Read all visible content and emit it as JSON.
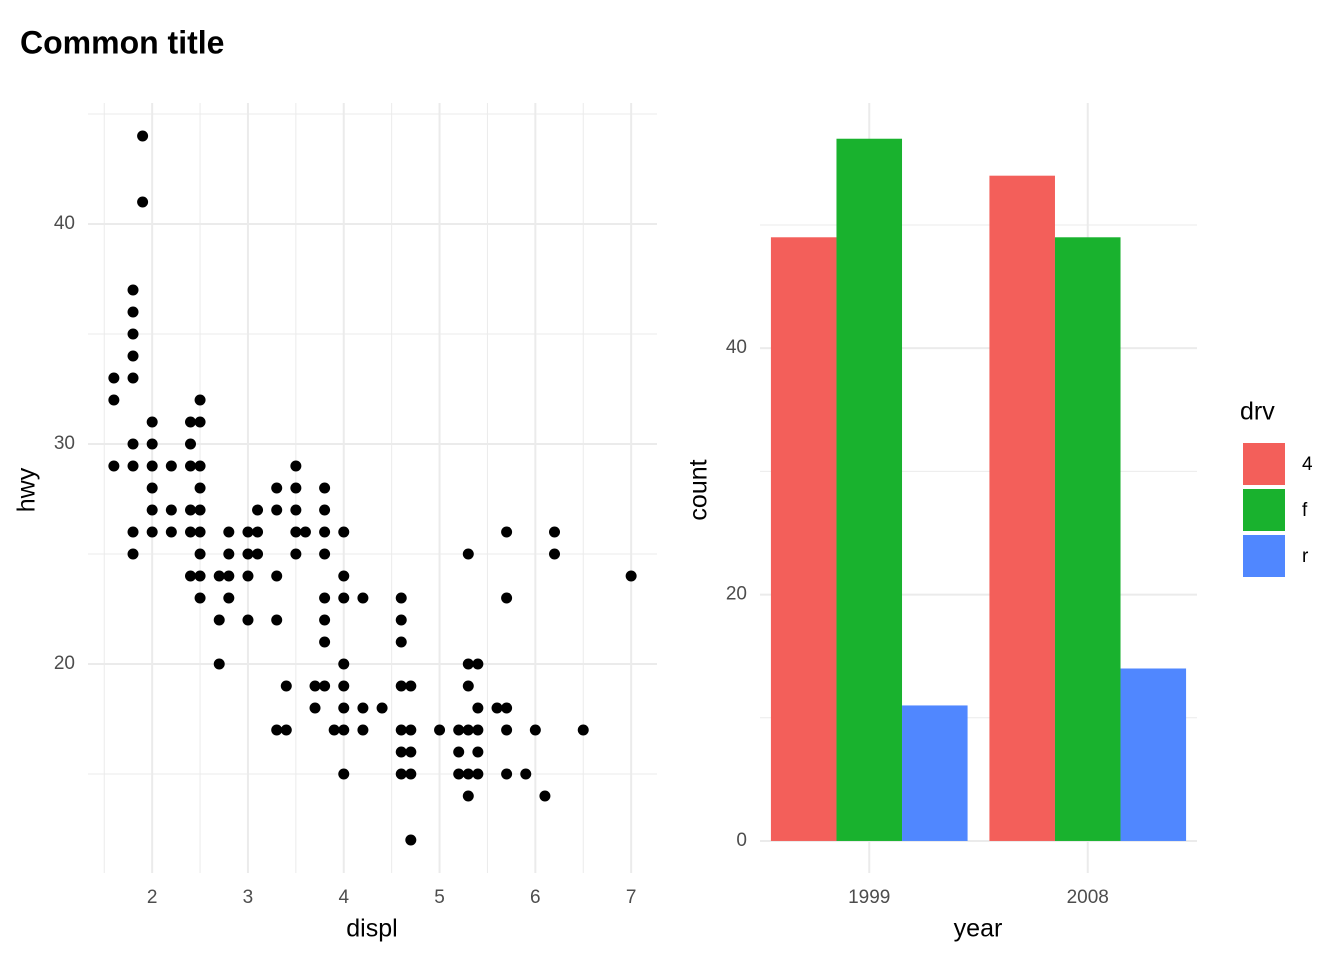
{
  "title": "Common title",
  "chart_data": [
    {
      "type": "scatter",
      "x_label": "displ",
      "y_label": "hwy",
      "color": "#000000",
      "xlim": [
        1.33,
        7.27
      ],
      "ylim": [
        10.5,
        45.5
      ],
      "xticks": [
        2,
        3,
        4,
        5,
        6,
        7
      ],
      "yticks": [
        20,
        30,
        40
      ],
      "x_minor_grid": [
        1.5,
        2.5,
        3.5,
        4.5,
        5.5,
        6.5
      ],
      "y_minor_grid": [
        15,
        25,
        35,
        45
      ],
      "grid": true,
      "x": [
        1.6,
        1.6,
        1.6,
        1.8,
        1.8,
        1.8,
        1.8,
        1.8,
        1.8,
        1.8,
        1.8,
        1.8,
        1.9,
        1.9,
        2.0,
        2.0,
        2.0,
        2.0,
        2.0,
        2.0,
        2.2,
        2.2,
        2.2,
        2.4,
        2.4,
        2.4,
        2.4,
        2.4,
        2.4,
        2.5,
        2.5,
        2.5,
        2.5,
        2.5,
        2.5,
        2.5,
        2.5,
        2.5,
        2.7,
        2.7,
        2.7,
        2.8,
        2.8,
        2.8,
        2.8,
        3.0,
        3.0,
        3.0,
        3.0,
        3.1,
        3.1,
        3.1,
        3.3,
        3.3,
        3.3,
        3.3,
        3.3,
        3.4,
        3.4,
        3.5,
        3.5,
        3.5,
        3.5,
        3.5,
        3.6,
        3.7,
        3.7,
        3.8,
        3.8,
        3.8,
        3.8,
        3.8,
        3.8,
        3.8,
        3.8,
        3.9,
        4.0,
        4.0,
        4.0,
        4.0,
        4.0,
        4.0,
        4.0,
        4.0,
        4.2,
        4.2,
        4.2,
        4.4,
        4.6,
        4.6,
        4.6,
        4.6,
        4.6,
        4.6,
        4.6,
        4.7,
        4.7,
        4.7,
        4.7,
        4.7,
        5.0,
        5.2,
        5.2,
        5.2,
        5.3,
        5.3,
        5.3,
        5.3,
        5.3,
        5.3,
        5.4,
        5.4,
        5.4,
        5.4,
        5.4,
        5.6,
        5.7,
        5.7,
        5.7,
        5.7,
        5.7,
        5.9,
        6.0,
        6.1,
        6.2,
        6.2,
        6.5,
        7.0
      ],
      "y": [
        33,
        32,
        29,
        37,
        36,
        35,
        34,
        33,
        30,
        29,
        26,
        25,
        44,
        41,
        31,
        30,
        29,
        28,
        27,
        26,
        29,
        27,
        26,
        31,
        30,
        29,
        27,
        26,
        24,
        32,
        31,
        29,
        28,
        27,
        26,
        25,
        24,
        23,
        24,
        22,
        20,
        26,
        25,
        24,
        23,
        26,
        25,
        24,
        22,
        27,
        26,
        25,
        28,
        27,
        24,
        22,
        17,
        19,
        17,
        29,
        28,
        27,
        26,
        25,
        26,
        19,
        18,
        28,
        27,
        26,
        25,
        23,
        22,
        21,
        19,
        17,
        26,
        24,
        23,
        20,
        19,
        18,
        17,
        15,
        23,
        18,
        17,
        18,
        23,
        22,
        21,
        19,
        17,
        16,
        15,
        19,
        17,
        16,
        15,
        12,
        17,
        17,
        16,
        15,
        25,
        20,
        19,
        17,
        15,
        14,
        20,
        18,
        17,
        16,
        15,
        18,
        26,
        23,
        18,
        17,
        15,
        15,
        17,
        14,
        26,
        25,
        17,
        24
      ]
    },
    {
      "type": "bar",
      "x_label": "year",
      "y_label": "count",
      "legend_title": "drv",
      "categories": [
        "1999",
        "2008"
      ],
      "ylim": [
        -2.6,
        59.9
      ],
      "yticks": [
        0,
        20,
        40
      ],
      "y_minor_grid": [
        10,
        30,
        50
      ],
      "grid": true,
      "series": [
        {
          "name": "4",
          "color": "#f35f5a",
          "values": [
            49,
            54
          ]
        },
        {
          "name": "f",
          "color": "#19b22e",
          "values": [
            57,
            49
          ]
        },
        {
          "name": "r",
          "color": "#5087ff",
          "values": [
            11,
            14
          ]
        }
      ]
    }
  ]
}
